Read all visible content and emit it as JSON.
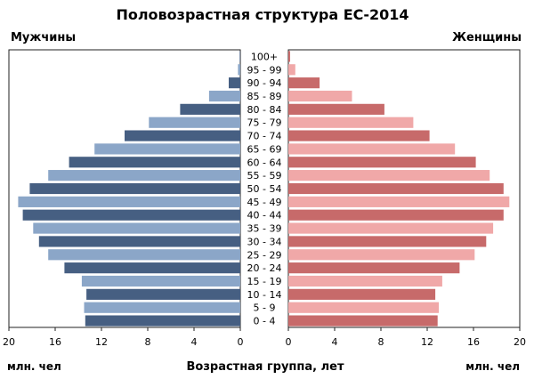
{
  "chart_data": {
    "type": "bar",
    "title": "Половозрастная структура ЕС-2014",
    "left_label": "Мужчины",
    "right_label": "Женщины",
    "xlabel": "Возрастная группа, лет",
    "unit_left": "млн. чел",
    "unit_right": "млн. чел",
    "xlim": [
      0,
      20
    ],
    "x_ticks": [
      "20",
      "16",
      "12",
      "8",
      "4",
      "0"
    ],
    "x_ticks_right": [
      "0",
      "4",
      "8",
      "12",
      "16",
      "20"
    ],
    "categories": [
      "100+",
      "95 - 99",
      "90 - 94",
      "85 - 89",
      "80 - 84",
      "75 - 79",
      "70 - 74",
      "65 - 69",
      "60 - 64",
      "55 - 59",
      "50 - 54",
      "45 - 49",
      "40 - 44",
      "35 - 39",
      "30 - 34",
      "25 - 29",
      "20 - 24",
      "15 - 19",
      "10 - 14",
      "5 - 9",
      "0 - 4"
    ],
    "series": [
      {
        "name": "Мужчины",
        "values": [
          0.05,
          0.2,
          1.0,
          2.7,
          5.2,
          7.9,
          10.0,
          12.6,
          14.8,
          16.6,
          18.2,
          19.2,
          18.8,
          17.9,
          17.4,
          16.6,
          15.2,
          13.7,
          13.3,
          13.5,
          13.4
        ]
      },
      {
        "name": "Женщины",
        "values": [
          0.15,
          0.6,
          2.7,
          5.5,
          8.3,
          10.8,
          12.2,
          14.4,
          16.2,
          17.4,
          18.6,
          19.1,
          18.6,
          17.7,
          17.1,
          16.1,
          14.8,
          13.3,
          12.7,
          13.0,
          12.9
        ]
      }
    ],
    "colors": {
      "male_dark": "#465f82",
      "male_light": "#8ba6c8",
      "female_dark": "#c76a6a",
      "female_light": "#f0a8a8",
      "frame": "#222222",
      "grid": "#dddddd"
    },
    "grid": false,
    "legend": "none"
  }
}
